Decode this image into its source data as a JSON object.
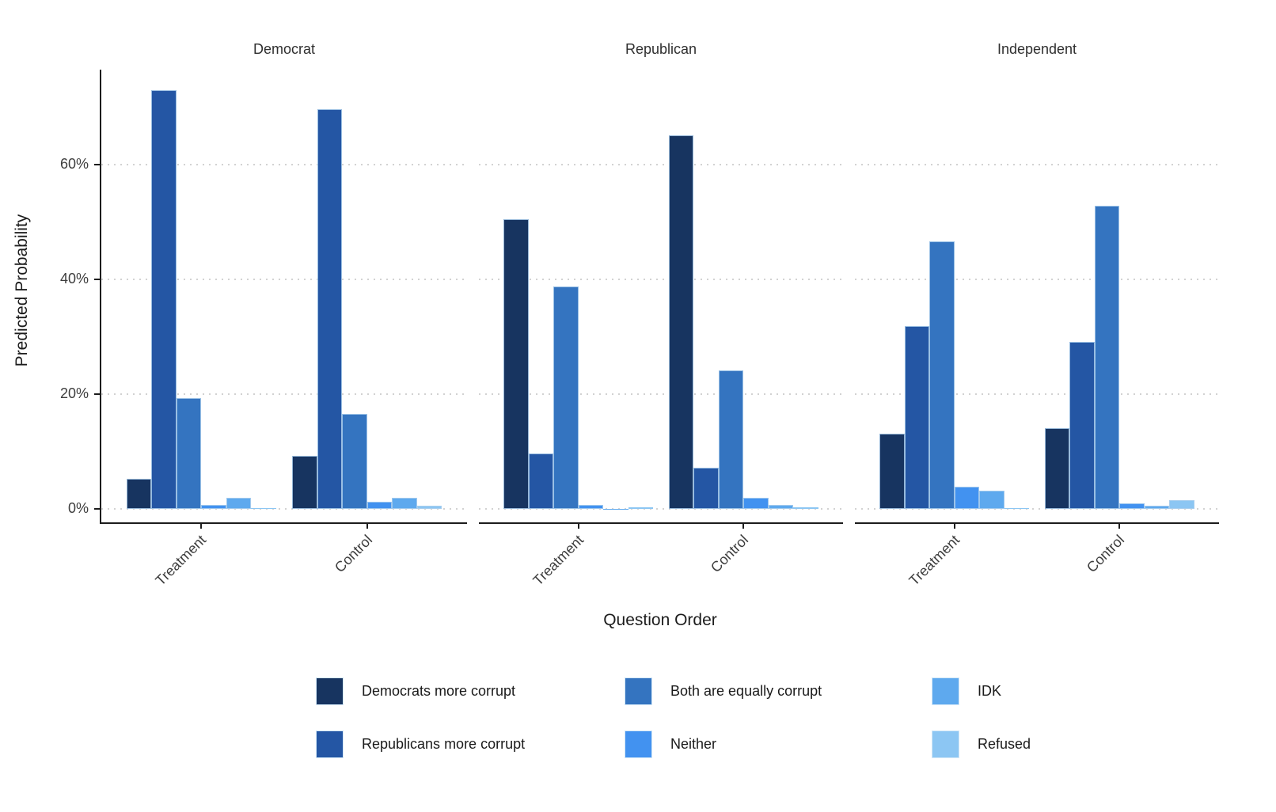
{
  "chart_data": {
    "type": "bar",
    "title": "",
    "xlabel": "Question Order",
    "ylabel": "Predicted Probability",
    "y_ticks": [
      {
        "label": "0%",
        "value": 0
      },
      {
        "label": "20%",
        "value": 20
      },
      {
        "label": "40%",
        "value": 40
      },
      {
        "label": "60%",
        "value": 60
      }
    ],
    "ylim": [
      0,
      76.6
    ],
    "grid": "horizontal-dotted",
    "legend_position": "bottom",
    "series": [
      {
        "name": "Democrats more corrupt",
        "color": "#173460"
      },
      {
        "name": "Republicans more corrupt",
        "color": "#2456a4"
      },
      {
        "name": "Both are equally corrupt",
        "color": "#3474c0"
      },
      {
        "name": "Neither",
        "color": "#4292f0"
      },
      {
        "name": "IDK",
        "color": "#5ea9ee"
      },
      {
        "name": "Refused",
        "color": "#8cc6f3"
      }
    ],
    "facets": [
      {
        "label": "Democrat",
        "groups": [
          {
            "label": "Treatment",
            "values": [
              5.2,
              73.0,
              19.3,
              0.7,
              2.0,
              0.1
            ]
          },
          {
            "label": "Control",
            "values": [
              9.3,
              69.7,
              16.6,
              1.3,
              1.9,
              0.5
            ]
          }
        ]
      },
      {
        "label": "Republican",
        "groups": [
          {
            "label": "Treatment",
            "values": [
              50.5,
              9.7,
              38.8,
              0.7,
              0.05,
              0.3
            ]
          },
          {
            "label": "Control",
            "values": [
              65.1,
              7.2,
              24.2,
              2.0,
              0.7,
              0.3
            ]
          }
        ]
      },
      {
        "label": "Independent",
        "groups": [
          {
            "label": "Treatment",
            "values": [
              13.1,
              31.9,
              46.6,
              3.9,
              3.2,
              0.1
            ]
          },
          {
            "label": "Control",
            "values": [
              14.1,
              29.1,
              52.8,
              0.9,
              0.5,
              1.5
            ]
          }
        ]
      }
    ]
  }
}
